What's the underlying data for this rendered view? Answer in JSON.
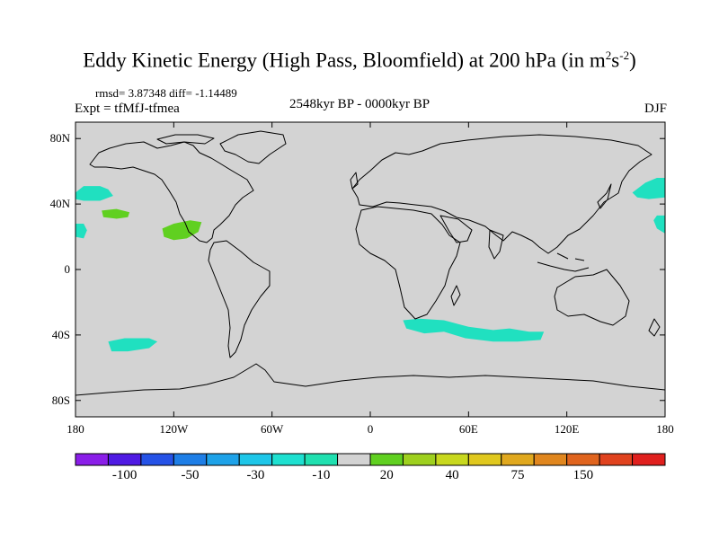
{
  "title": "Eddy Kinetic Energy (High Pass, Bloomfield) at 200 hPa (in m",
  "title_units": {
    "sup1": "2",
    "mid": "s",
    "sup2": "-2",
    "end": ")"
  },
  "stats": "rmsd= 3.87348 diff= -1.14489",
  "expt": "Expt = tfMfJ-tfmea",
  "period": "2548kyr BP - 0000kyr BP",
  "season": "DJF",
  "map": {
    "lon_range": [
      -180,
      180
    ],
    "lat_range": [
      -90,
      90
    ],
    "ocean_land_color": "#d3d3d3",
    "coastline_color": "#000000",
    "y_ticks": [
      {
        "value": 80,
        "label": "80N"
      },
      {
        "value": 40,
        "label": "40N"
      },
      {
        "value": 0,
        "label": "0"
      },
      {
        "value": -40,
        "label": "40S"
      },
      {
        "value": -80,
        "label": "80S"
      }
    ],
    "x_ticks": [
      {
        "value": -180,
        "label": "180"
      },
      {
        "value": -120,
        "label": "120W"
      },
      {
        "value": -60,
        "label": "60W"
      },
      {
        "value": 0,
        "label": "0"
      },
      {
        "value": 60,
        "label": "60E"
      },
      {
        "value": 120,
        "label": "120E"
      },
      {
        "value": 180,
        "label": "180"
      }
    ],
    "anomaly_regions": [
      {
        "category": "-20 to -10",
        "color": "#20e0c0",
        "polygon": [
          [
            -180,
            47
          ],
          [
            -175,
            51
          ],
          [
            -165,
            51
          ],
          [
            -160,
            49
          ],
          [
            -157,
            45
          ],
          [
            -165,
            42
          ],
          [
            -175,
            42
          ],
          [
            -180,
            43
          ]
        ]
      },
      {
        "category": "-20 to -10",
        "color": "#20e0c0",
        "polygon": [
          [
            -180,
            28
          ],
          [
            -175,
            28
          ],
          [
            -173,
            24
          ],
          [
            -175,
            19
          ],
          [
            -180,
            20
          ]
        ]
      },
      {
        "category": "10 to 20",
        "color": "#60d020",
        "polygon": [
          [
            -164,
            36
          ],
          [
            -155,
            37
          ],
          [
            -147,
            35
          ],
          [
            -148,
            32
          ],
          [
            -155,
            31
          ],
          [
            -163,
            32
          ]
        ]
      },
      {
        "category": "10 to 20",
        "color": "#60d020",
        "polygon": [
          [
            -127,
            25
          ],
          [
            -120,
            28
          ],
          [
            -110,
            30
          ],
          [
            -103,
            29
          ],
          [
            -105,
            23
          ],
          [
            -112,
            19
          ],
          [
            -120,
            18
          ],
          [
            -126,
            20
          ]
        ]
      },
      {
        "category": "-20 to -10",
        "color": "#20e0c0",
        "polygon": [
          [
            20,
            -31
          ],
          [
            30,
            -30
          ],
          [
            45,
            -31
          ],
          [
            60,
            -35
          ],
          [
            75,
            -37
          ],
          [
            85,
            -36
          ],
          [
            97,
            -38
          ],
          [
            106,
            -38
          ],
          [
            104,
            -43
          ],
          [
            90,
            -44
          ],
          [
            75,
            -44
          ],
          [
            58,
            -42
          ],
          [
            45,
            -38
          ],
          [
            33,
            -39
          ],
          [
            22,
            -36
          ]
        ]
      },
      {
        "category": "-20 to -10",
        "color": "#20e0c0",
        "polygon": [
          [
            -160,
            -44
          ],
          [
            -150,
            -42
          ],
          [
            -135,
            -42
          ],
          [
            -130,
            -44
          ],
          [
            -135,
            -48
          ],
          [
            -148,
            -50
          ],
          [
            -158,
            -50
          ]
        ]
      },
      {
        "category": "-20 to -10",
        "color": "#20e0c0",
        "polygon": [
          [
            180,
            56
          ],
          [
            175,
            56
          ],
          [
            168,
            53
          ],
          [
            160,
            47
          ],
          [
            163,
            44
          ],
          [
            170,
            43
          ],
          [
            180,
            44
          ]
        ]
      },
      {
        "category": "-20 to -10",
        "color": "#20e0c0",
        "polygon": [
          [
            180,
            33
          ],
          [
            175,
            33
          ],
          [
            173,
            30
          ],
          [
            175,
            25
          ],
          [
            180,
            22
          ]
        ]
      }
    ]
  },
  "colorbar": {
    "colors": [
      "#8a1ee8",
      "#4f1ae3",
      "#2552e6",
      "#1e7ee6",
      "#1ea2e8",
      "#1ec6e8",
      "#1ee0d0",
      "#20e0b0",
      "#d3d3d3",
      "#60d020",
      "#9ed01e",
      "#c8d81e",
      "#e0c81e",
      "#e0a81e",
      "#e0861e",
      "#e0641e",
      "#e0421e",
      "#e0201e"
    ],
    "labels": [
      {
        "boundary": 1.5,
        "text": "-100"
      },
      {
        "boundary": 3.5,
        "text": "-50"
      },
      {
        "boundary": 5.5,
        "text": "-30"
      },
      {
        "boundary": 7.5,
        "text": "-10"
      },
      {
        "boundary": 9.5,
        "text": "20"
      },
      {
        "boundary": 11.5,
        "text": "40"
      },
      {
        "boundary": 13.5,
        "text": "75"
      },
      {
        "boundary": 15.5,
        "text": "150"
      }
    ]
  }
}
